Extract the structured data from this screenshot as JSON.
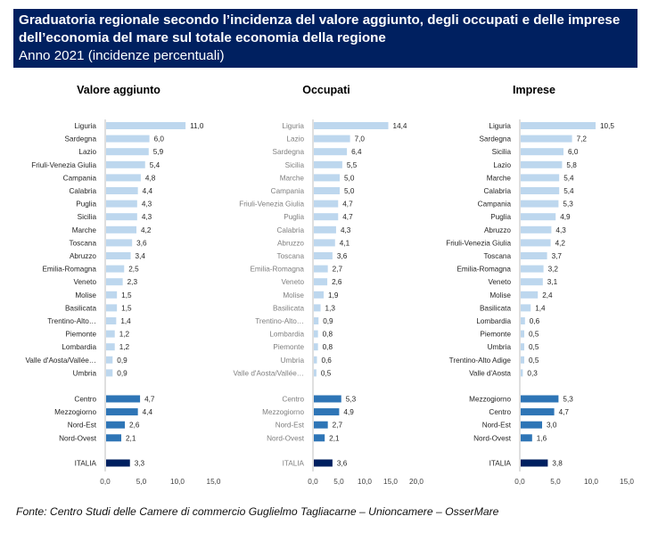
{
  "header": {
    "title_line1": "Graduatoria regionale secondo l’incidenza del valore aggiunto, degli occupati e delle imprese",
    "title_line2": "dell’economia del mare sul totale economia della regione",
    "subtitle": "Anno 2021 (incidenze percentuali)"
  },
  "footer": {
    "source": "Fonte: Centro Studi delle Camere di commercio Guglielmo Tagliacarne – Unioncamere – OsserMare"
  },
  "colors": {
    "header_bg": "#002060",
    "region_bar": "#BDD7EE",
    "macro_bar": "#2E75B6",
    "italia_bar": "#002060",
    "axis": "#BFBFBF"
  },
  "chart_data": [
    {
      "type": "bar",
      "orientation": "horizontal",
      "title": "Valore aggiunto",
      "xlim": [
        0,
        15
      ],
      "xticks": [
        "0,0",
        "5,0",
        "10,0",
        "15,0"
      ],
      "label_color": "dark",
      "regions": [
        {
          "label": "Liguria",
          "value": 11.0,
          "text": "11,0"
        },
        {
          "label": "Sardegna",
          "value": 6.0,
          "text": "6,0"
        },
        {
          "label": "Lazio",
          "value": 5.9,
          "text": "5,9"
        },
        {
          "label": "Friuli-Venezia Giulia",
          "value": 5.4,
          "text": "5,4"
        },
        {
          "label": "Campania",
          "value": 4.8,
          "text": "4,8"
        },
        {
          "label": "Calabria",
          "value": 4.4,
          "text": "4,4"
        },
        {
          "label": "Puglia",
          "value": 4.3,
          "text": "4,3"
        },
        {
          "label": "Sicilia",
          "value": 4.3,
          "text": "4,3"
        },
        {
          "label": "Marche",
          "value": 4.2,
          "text": "4,2"
        },
        {
          "label": "Toscana",
          "value": 3.6,
          "text": "3,6"
        },
        {
          "label": "Abruzzo",
          "value": 3.4,
          "text": "3,4"
        },
        {
          "label": "Emilia-Romagna",
          "value": 2.5,
          "text": "2,5"
        },
        {
          "label": "Veneto",
          "value": 2.3,
          "text": "2,3"
        },
        {
          "label": "Molise",
          "value": 1.5,
          "text": "1,5"
        },
        {
          "label": "Basilicata",
          "value": 1.5,
          "text": "1,5"
        },
        {
          "label": "Trentino-Alto…",
          "value": 1.4,
          "text": "1,4"
        },
        {
          "label": "Piemonte",
          "value": 1.2,
          "text": "1,2"
        },
        {
          "label": "Lombardia",
          "value": 1.2,
          "text": "1,2"
        },
        {
          "label": "Valle d'Aosta/Vallée…",
          "value": 0.9,
          "text": "0,9"
        },
        {
          "label": "Umbria",
          "value": 0.9,
          "text": "0,9"
        }
      ],
      "macro": [
        {
          "label": "Centro",
          "value": 4.7,
          "text": "4,7"
        },
        {
          "label": "Mezzogiorno",
          "value": 4.4,
          "text": "4,4"
        },
        {
          "label": "Nord-Est",
          "value": 2.6,
          "text": "2,6"
        },
        {
          "label": "Nord-Ovest",
          "value": 2.1,
          "text": "2,1"
        }
      ],
      "italia": {
        "label": "ITALIA",
        "value": 3.3,
        "text": "3,3"
      }
    },
    {
      "type": "bar",
      "orientation": "horizontal",
      "title": "Occupati",
      "xlim": [
        0,
        20
      ],
      "xticks": [
        "0,0",
        "5,0",
        "10,0",
        "15,0",
        "20,0"
      ],
      "label_color": "grey",
      "regions": [
        {
          "label": "Liguria",
          "value": 14.4,
          "text": "14,4"
        },
        {
          "label": "Lazio",
          "value": 7.0,
          "text": "7,0"
        },
        {
          "label": "Sardegna",
          "value": 6.4,
          "text": "6,4"
        },
        {
          "label": "Sicilia",
          "value": 5.5,
          "text": "5,5"
        },
        {
          "label": "Marche",
          "value": 5.0,
          "text": "5,0"
        },
        {
          "label": "Campania",
          "value": 5.0,
          "text": "5,0"
        },
        {
          "label": "Friuli-Venezia Giulia",
          "value": 4.7,
          "text": "4,7"
        },
        {
          "label": "Puglia",
          "value": 4.7,
          "text": "4,7"
        },
        {
          "label": "Calabria",
          "value": 4.3,
          "text": "4,3"
        },
        {
          "label": "Abruzzo",
          "value": 4.1,
          "text": "4,1"
        },
        {
          "label": "Toscana",
          "value": 3.6,
          "text": "3,6"
        },
        {
          "label": "Emilia-Romagna",
          "value": 2.7,
          "text": "2,7"
        },
        {
          "label": "Veneto",
          "value": 2.6,
          "text": "2,6"
        },
        {
          "label": "Molise",
          "value": 1.9,
          "text": "1,9"
        },
        {
          "label": "Basilicata",
          "value": 1.3,
          "text": "1,3"
        },
        {
          "label": "Trentino-Alto…",
          "value": 0.9,
          "text": "0,9"
        },
        {
          "label": "Lombardia",
          "value": 0.8,
          "text": "0,8"
        },
        {
          "label": "Piemonte",
          "value": 0.8,
          "text": "0,8"
        },
        {
          "label": "Umbria",
          "value": 0.6,
          "text": "0,6"
        },
        {
          "label": "Valle d'Aosta/Vallée…",
          "value": 0.5,
          "text": "0,5"
        }
      ],
      "macro": [
        {
          "label": "Centro",
          "value": 5.3,
          "text": "5,3"
        },
        {
          "label": "Mezzogiorno",
          "value": 4.9,
          "text": "4,9"
        },
        {
          "label": "Nord-Est",
          "value": 2.7,
          "text": "2,7"
        },
        {
          "label": "Nord-Ovest",
          "value": 2.1,
          "text": "2,1"
        }
      ],
      "italia": {
        "label": "ITALIA",
        "value": 3.6,
        "text": "3,6"
      }
    },
    {
      "type": "bar",
      "orientation": "horizontal",
      "title": "Imprese",
      "xlim": [
        0,
        15
      ],
      "xticks": [
        "0,0",
        "5,0",
        "10,0",
        "15,0"
      ],
      "label_color": "dark",
      "regions": [
        {
          "label": "Liguria",
          "value": 10.5,
          "text": "10,5"
        },
        {
          "label": "Sardegna",
          "value": 7.2,
          "text": "7,2"
        },
        {
          "label": "Sicilia",
          "value": 6.0,
          "text": "6,0"
        },
        {
          "label": "Lazio",
          "value": 5.8,
          "text": "5,8"
        },
        {
          "label": "Marche",
          "value": 5.4,
          "text": "5,4"
        },
        {
          "label": "Calabria",
          "value": 5.4,
          "text": "5,4"
        },
        {
          "label": "Campania",
          "value": 5.3,
          "text": "5,3"
        },
        {
          "label": "Puglia",
          "value": 4.9,
          "text": "4,9"
        },
        {
          "label": "Abruzzo",
          "value": 4.3,
          "text": "4,3"
        },
        {
          "label": "Friuli-Venezia Giulia",
          "value": 4.2,
          "text": "4,2"
        },
        {
          "label": "Toscana",
          "value": 3.7,
          "text": "3,7"
        },
        {
          "label": "Emilia-Romagna",
          "value": 3.2,
          "text": "3,2"
        },
        {
          "label": "Veneto",
          "value": 3.1,
          "text": "3,1"
        },
        {
          "label": "Molise",
          "value": 2.4,
          "text": "2,4"
        },
        {
          "label": "Basilicata",
          "value": 1.4,
          "text": "1,4"
        },
        {
          "label": "Lombardia",
          "value": 0.6,
          "text": "0,6"
        },
        {
          "label": "Piemonte",
          "value": 0.5,
          "text": "0,5"
        },
        {
          "label": "Umbria",
          "value": 0.5,
          "text": "0,5"
        },
        {
          "label": "Trentino-Alto Adige",
          "value": 0.5,
          "text": "0,5"
        },
        {
          "label": "Valle d'Aosta",
          "value": 0.3,
          "text": "0,3"
        }
      ],
      "macro": [
        {
          "label": "Mezzogiorno",
          "value": 5.3,
          "text": "5,3"
        },
        {
          "label": "Centro",
          "value": 4.7,
          "text": "4,7"
        },
        {
          "label": "Nord-Est",
          "value": 3.0,
          "text": "3,0"
        },
        {
          "label": "Nord-Ovest",
          "value": 1.6,
          "text": "1,6"
        }
      ],
      "italia": {
        "label": "ITALIA",
        "value": 3.8,
        "text": "3,8"
      }
    }
  ]
}
